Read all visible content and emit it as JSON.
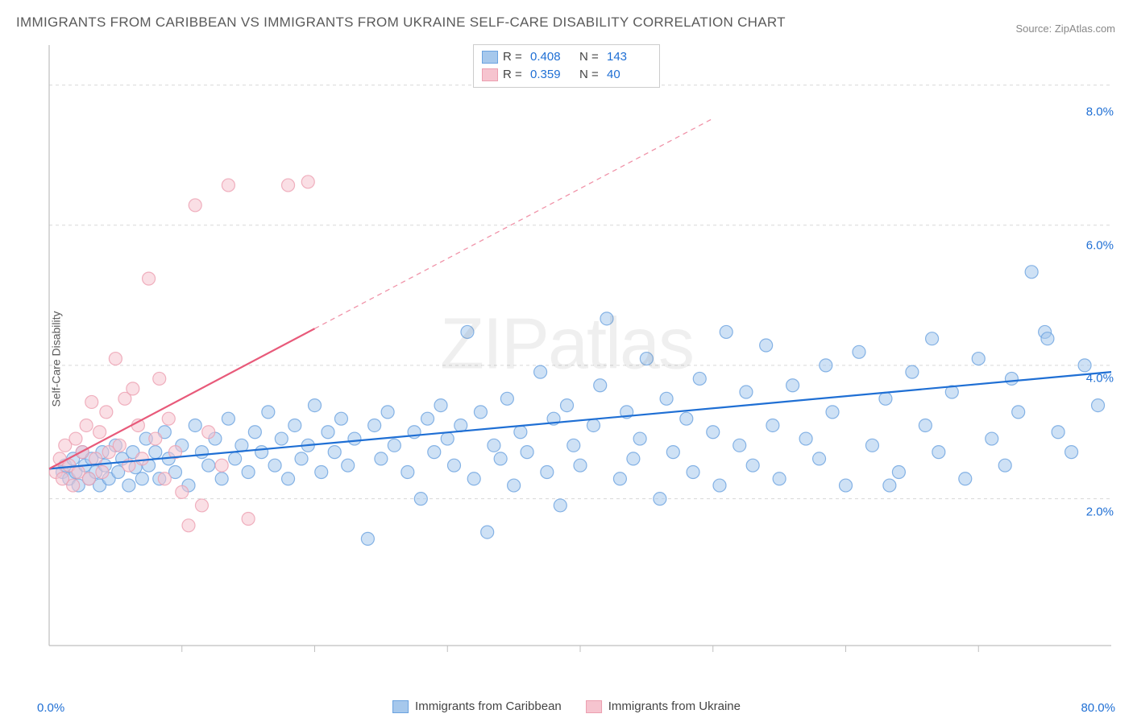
{
  "title": "IMMIGRANTS FROM CARIBBEAN VS IMMIGRANTS FROM UKRAINE SELF-CARE DISABILITY CORRELATION CHART",
  "source": "Source: ZipAtlas.com",
  "watermark": "ZIPatlas",
  "ylabel": "Self-Care Disability",
  "chart": {
    "type": "scatter",
    "background_color": "#ffffff",
    "grid_color": "#d8d8d8",
    "grid_dash": "4 4",
    "axis_color": "#bfbfbf",
    "tick_color": "#bfbfbf",
    "xlim": [
      0,
      80
    ],
    "ylim": [
      0,
      9
    ],
    "xticks_minor_step": 10,
    "yticks": [
      2.0,
      4.0,
      6.0,
      8.0
    ],
    "ytick_labels": [
      "2.0%",
      "4.0%",
      "6.0%",
      "8.0%"
    ],
    "ytick_label_color": "#1f6fd4",
    "xaxis_label_left": "0.0%",
    "xaxis_label_right": "80.0%",
    "marker_radius": 8,
    "marker_stroke_width": 1.2,
    "marker_opacity": 0.55,
    "trend_line_width": 2.2,
    "trend_line_dash_extrapolate": "6 5"
  },
  "legend_top": {
    "border_color": "#cccccc",
    "rows": [
      {
        "swatch_fill": "#a6c8ec",
        "swatch_stroke": "#6ba3e0",
        "R": "0.408",
        "N": "143"
      },
      {
        "swatch_fill": "#f6c4cf",
        "swatch_stroke": "#ec9fb0",
        "R": "0.359",
        "N": "40"
      }
    ],
    "label_color": "#444444",
    "value_color": "#1f6fd4"
  },
  "legend_bottom": {
    "items": [
      {
        "swatch_fill": "#a6c8ec",
        "swatch_stroke": "#6ba3e0",
        "label": "Immigrants from Caribbean"
      },
      {
        "swatch_fill": "#f6c4cf",
        "swatch_stroke": "#ec9fb0",
        "label": "Immigrants from Ukraine"
      }
    ]
  },
  "series": [
    {
      "name": "Immigrants from Caribbean",
      "fill": "#a6c8ec",
      "stroke": "#6ba3e0",
      "trend_color": "#1f6fd4",
      "trend": {
        "x1": 0,
        "y1": 2.65,
        "x2": 80,
        "y2": 4.1
      },
      "trend_extrapolate": null,
      "points": [
        [
          1,
          2.6
        ],
        [
          1.2,
          2.7
        ],
        [
          1.5,
          2.5
        ],
        [
          1.8,
          2.8
        ],
        [
          2,
          2.6
        ],
        [
          2.2,
          2.4
        ],
        [
          2.5,
          2.9
        ],
        [
          2.7,
          2.7
        ],
        [
          3,
          2.5
        ],
        [
          3.2,
          2.8
        ],
        [
          3.5,
          2.6
        ],
        [
          3.8,
          2.4
        ],
        [
          4,
          2.9
        ],
        [
          4.2,
          2.7
        ],
        [
          4.5,
          2.5
        ],
        [
          5,
          3.0
        ],
        [
          5.2,
          2.6
        ],
        [
          5.5,
          2.8
        ],
        [
          6,
          2.4
        ],
        [
          6.3,
          2.9
        ],
        [
          6.5,
          2.67
        ],
        [
          7,
          2.5
        ],
        [
          7.3,
          3.1
        ],
        [
          7.5,
          2.7
        ],
        [
          8,
          2.9
        ],
        [
          8.3,
          2.5
        ],
        [
          8.7,
          3.2
        ],
        [
          9,
          2.8
        ],
        [
          9.5,
          2.6
        ],
        [
          10,
          3.0
        ],
        [
          10.5,
          2.4
        ],
        [
          11,
          3.3
        ],
        [
          11.5,
          2.9
        ],
        [
          12,
          2.7
        ],
        [
          12.5,
          3.1
        ],
        [
          13,
          2.5
        ],
        [
          13.5,
          3.4
        ],
        [
          14,
          2.8
        ],
        [
          14.5,
          3.0
        ],
        [
          15,
          2.6
        ],
        [
          15.5,
          3.2
        ],
        [
          16,
          2.9
        ],
        [
          16.5,
          3.5
        ],
        [
          17,
          2.7
        ],
        [
          17.5,
          3.1
        ],
        [
          18,
          2.5
        ],
        [
          18.5,
          3.3
        ],
        [
          19,
          2.8
        ],
        [
          19.5,
          3.0
        ],
        [
          20,
          3.6
        ],
        [
          20.5,
          2.6
        ],
        [
          21,
          3.2
        ],
        [
          21.5,
          2.9
        ],
        [
          22,
          3.4
        ],
        [
          22.5,
          2.7
        ],
        [
          23,
          3.1
        ],
        [
          24,
          1.6
        ],
        [
          24.5,
          3.3
        ],
        [
          25,
          2.8
        ],
        [
          25.5,
          3.5
        ],
        [
          26,
          3.0
        ],
        [
          27,
          2.6
        ],
        [
          27.5,
          3.2
        ],
        [
          28,
          2.2
        ],
        [
          28.5,
          3.4
        ],
        [
          29,
          2.9
        ],
        [
          29.5,
          3.6
        ],
        [
          30,
          3.1
        ],
        [
          30.5,
          2.7
        ],
        [
          31,
          3.3
        ],
        [
          31.5,
          4.7
        ],
        [
          32,
          2.5
        ],
        [
          32.5,
          3.5
        ],
        [
          33,
          1.7
        ],
        [
          33.5,
          3.0
        ],
        [
          34,
          2.8
        ],
        [
          34.5,
          3.7
        ],
        [
          35,
          2.4
        ],
        [
          35.5,
          3.2
        ],
        [
          36,
          2.9
        ],
        [
          37,
          4.1
        ],
        [
          37.5,
          2.6
        ],
        [
          38,
          3.4
        ],
        [
          38.5,
          2.1
        ],
        [
          39,
          3.6
        ],
        [
          39.5,
          3.0
        ],
        [
          40,
          2.7
        ],
        [
          41,
          3.3
        ],
        [
          41.5,
          3.9
        ],
        [
          42,
          4.9
        ],
        [
          43,
          2.5
        ],
        [
          43.5,
          3.5
        ],
        [
          44,
          2.8
        ],
        [
          44.5,
          3.1
        ],
        [
          45,
          4.3
        ],
        [
          46,
          2.2
        ],
        [
          46.5,
          3.7
        ],
        [
          47,
          2.9
        ],
        [
          48,
          3.4
        ],
        [
          48.5,
          2.6
        ],
        [
          49,
          4.0
        ],
        [
          50,
          3.2
        ],
        [
          50.5,
          2.4
        ],
        [
          51,
          4.7
        ],
        [
          52,
          3.0
        ],
        [
          52.5,
          3.8
        ],
        [
          53,
          2.7
        ],
        [
          54,
          4.5
        ],
        [
          54.5,
          3.3
        ],
        [
          55,
          2.5
        ],
        [
          56,
          3.9
        ],
        [
          57,
          3.1
        ],
        [
          58,
          2.8
        ],
        [
          58.5,
          4.2
        ],
        [
          59,
          3.5
        ],
        [
          60,
          2.4
        ],
        [
          61,
          4.4
        ],
        [
          62,
          3.0
        ],
        [
          63,
          3.7
        ],
        [
          63.3,
          2.4
        ],
        [
          64,
          2.6
        ],
        [
          65,
          4.1
        ],
        [
          66,
          3.3
        ],
        [
          66.5,
          4.6
        ],
        [
          67,
          2.9
        ],
        [
          68,
          3.8
        ],
        [
          69,
          2.5
        ],
        [
          70,
          4.3
        ],
        [
          71,
          3.1
        ],
        [
          72,
          2.7
        ],
        [
          72.5,
          4.0
        ],
        [
          73,
          3.5
        ],
        [
          74,
          5.6
        ],
        [
          75,
          4.7
        ],
        [
          75.2,
          4.6
        ],
        [
          76,
          3.2
        ],
        [
          77,
          2.9
        ],
        [
          78,
          4.2
        ],
        [
          79,
          3.6
        ]
      ]
    },
    {
      "name": "Immigrants from Ukraine",
      "fill": "#f6c4cf",
      "stroke": "#ec9fb0",
      "trend_color": "#e85a7a",
      "trend": {
        "x1": 0,
        "y1": 2.65,
        "x2": 20,
        "y2": 4.75
      },
      "trend_extrapolate": {
        "x1": 20,
        "y1": 4.75,
        "x2": 50,
        "y2": 7.9
      },
      "points": [
        [
          0.5,
          2.6
        ],
        [
          0.8,
          2.8
        ],
        [
          1,
          2.5
        ],
        [
          1.2,
          3.0
        ],
        [
          1.5,
          2.7
        ],
        [
          1.8,
          2.4
        ],
        [
          2,
          3.1
        ],
        [
          2.2,
          2.6
        ],
        [
          2.5,
          2.9
        ],
        [
          2.8,
          3.3
        ],
        [
          3,
          2.5
        ],
        [
          3.2,
          3.65
        ],
        [
          3.5,
          2.8
        ],
        [
          3.8,
          3.2
        ],
        [
          4,
          2.6
        ],
        [
          4.3,
          3.5
        ],
        [
          4.5,
          2.9
        ],
        [
          5,
          4.3
        ],
        [
          5.3,
          3.0
        ],
        [
          5.7,
          3.7
        ],
        [
          6,
          2.7
        ],
        [
          6.3,
          3.85
        ],
        [
          6.7,
          3.3
        ],
        [
          7,
          2.8
        ],
        [
          7.5,
          5.5
        ],
        [
          8,
          3.1
        ],
        [
          8.3,
          4.0
        ],
        [
          8.7,
          2.5
        ],
        [
          9,
          3.4
        ],
        [
          9.5,
          2.9
        ],
        [
          10,
          2.3
        ],
        [
          10.5,
          1.8
        ],
        [
          11,
          6.6
        ],
        [
          11.5,
          2.1
        ],
        [
          12,
          3.2
        ],
        [
          13,
          2.7
        ],
        [
          13.5,
          6.9
        ],
        [
          15,
          1.9
        ],
        [
          18,
          6.9
        ],
        [
          19.5,
          6.95
        ]
      ]
    }
  ]
}
